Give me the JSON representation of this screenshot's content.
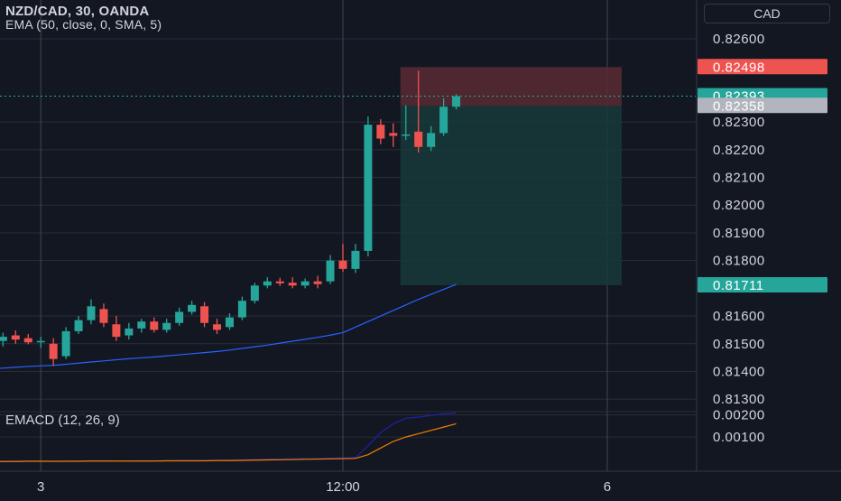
{
  "header": {
    "symbol_line": "NZD/CAD, 30, OANDA",
    "indicator_line": "EMA (50, close, 0, SMA, 5)",
    "currency": "CAD"
  },
  "colors": {
    "background": "#131722",
    "grid": "#2a2e39",
    "up": "#26a69a",
    "down": "#ef5350",
    "ema": "#2962ff",
    "macd": "#1e22aa",
    "signal": "#f57c00",
    "axis_text": "#d1d4dc",
    "stop_zone": "#5a2a33",
    "target_zone": "#173a3a"
  },
  "chart_data": [
    {
      "type": "candlestick",
      "title": "NZD/CAD, 30, OANDA",
      "x_ticks": [
        {
          "label": "3",
          "index": 3
        },
        {
          "label": "12:00",
          "index": 27
        },
        {
          "label": "6",
          "index": 48
        }
      ],
      "y_ticks": [
        "0.82600",
        "0.82300",
        "0.82200",
        "0.82100",
        "0.82000",
        "0.81900",
        "0.81800",
        "0.81600",
        "0.81500",
        "0.81400",
        "0.81300"
      ],
      "ylim": [
        0.81255,
        0.8274
      ],
      "candles": [
        {
          "o": 0.81505,
          "h": 0.81525,
          "l": 0.8148,
          "c": 0.815
        },
        {
          "o": 0.8151,
          "h": 0.8154,
          "l": 0.8149,
          "c": 0.81525
        },
        {
          "o": 0.8153,
          "h": 0.81548,
          "l": 0.815,
          "c": 0.81515
        },
        {
          "o": 0.8152,
          "h": 0.81535,
          "l": 0.81498,
          "c": 0.81505
        },
        {
          "o": 0.81505,
          "h": 0.81525,
          "l": 0.81485,
          "c": 0.8151
        },
        {
          "o": 0.815,
          "h": 0.8152,
          "l": 0.8142,
          "c": 0.81445
        },
        {
          "o": 0.81455,
          "h": 0.8156,
          "l": 0.81445,
          "c": 0.81545
        },
        {
          "o": 0.81545,
          "h": 0.816,
          "l": 0.81535,
          "c": 0.81585
        },
        {
          "o": 0.81585,
          "h": 0.8166,
          "l": 0.8157,
          "c": 0.81635
        },
        {
          "o": 0.81625,
          "h": 0.81645,
          "l": 0.8156,
          "c": 0.81575
        },
        {
          "o": 0.8157,
          "h": 0.816,
          "l": 0.8151,
          "c": 0.81525
        },
        {
          "o": 0.8153,
          "h": 0.81575,
          "l": 0.81515,
          "c": 0.81555
        },
        {
          "o": 0.81555,
          "h": 0.8159,
          "l": 0.8154,
          "c": 0.8158
        },
        {
          "o": 0.8158,
          "h": 0.81595,
          "l": 0.8154,
          "c": 0.8155
        },
        {
          "o": 0.8155,
          "h": 0.8159,
          "l": 0.8154,
          "c": 0.81575
        },
        {
          "o": 0.81575,
          "h": 0.8163,
          "l": 0.81565,
          "c": 0.81615
        },
        {
          "o": 0.81615,
          "h": 0.81655,
          "l": 0.81605,
          "c": 0.8164
        },
        {
          "o": 0.81635,
          "h": 0.8165,
          "l": 0.8156,
          "c": 0.81575
        },
        {
          "o": 0.8157,
          "h": 0.8159,
          "l": 0.81535,
          "c": 0.8155
        },
        {
          "o": 0.8156,
          "h": 0.8161,
          "l": 0.8155,
          "c": 0.81595
        },
        {
          "o": 0.81595,
          "h": 0.8167,
          "l": 0.81585,
          "c": 0.81655
        },
        {
          "o": 0.81655,
          "h": 0.8172,
          "l": 0.81645,
          "c": 0.8171
        },
        {
          "o": 0.8171,
          "h": 0.8174,
          "l": 0.817,
          "c": 0.81725
        },
        {
          "o": 0.81725,
          "h": 0.81738,
          "l": 0.81708,
          "c": 0.81718
        },
        {
          "o": 0.8172,
          "h": 0.8174,
          "l": 0.817,
          "c": 0.8171
        },
        {
          "o": 0.8171,
          "h": 0.81735,
          "l": 0.817,
          "c": 0.81725
        },
        {
          "o": 0.81725,
          "h": 0.81745,
          "l": 0.817,
          "c": 0.81715
        },
        {
          "o": 0.81725,
          "h": 0.8182,
          "l": 0.81715,
          "c": 0.818
        },
        {
          "o": 0.818,
          "h": 0.8186,
          "l": 0.8176,
          "c": 0.8177
        },
        {
          "o": 0.8177,
          "h": 0.8186,
          "l": 0.81755,
          "c": 0.81835
        },
        {
          "o": 0.81835,
          "h": 0.8232,
          "l": 0.81815,
          "c": 0.8229
        },
        {
          "o": 0.8229,
          "h": 0.8231,
          "l": 0.8222,
          "c": 0.8224
        },
        {
          "o": 0.8226,
          "h": 0.82295,
          "l": 0.8221,
          "c": 0.8225
        },
        {
          "o": 0.8225,
          "h": 0.8236,
          "l": 0.82235,
          "c": 0.82255
        },
        {
          "o": 0.82265,
          "h": 0.82485,
          "l": 0.8219,
          "c": 0.8221
        },
        {
          "o": 0.8221,
          "h": 0.82285,
          "l": 0.82195,
          "c": 0.8226
        },
        {
          "o": 0.8226,
          "h": 0.82385,
          "l": 0.8225,
          "c": 0.82355
        },
        {
          "o": 0.82355,
          "h": 0.824,
          "l": 0.82345,
          "c": 0.82393
        }
      ],
      "ema_values": [
        0.8141,
        0.81412,
        0.81415,
        0.81418,
        0.8142,
        0.81422,
        0.81426,
        0.8143,
        0.81434,
        0.81438,
        0.81442,
        0.81446,
        0.81449,
        0.81452,
        0.81456,
        0.8146,
        0.81464,
        0.81468,
        0.81472,
        0.81477,
        0.81483,
        0.81489,
        0.81495,
        0.81502,
        0.81509,
        0.81516,
        0.81523,
        0.81531,
        0.8154,
        0.8156,
        0.8158,
        0.816,
        0.8162,
        0.8164,
        0.8166,
        0.81678,
        0.81696,
        0.81714
      ],
      "position": {
        "entry": 0.82358,
        "stop": 0.82498,
        "target": 0.81711,
        "start_index": 32,
        "end_index": 49
      },
      "price_labels": [
        {
          "text": "0.82498",
          "value": 0.82498,
          "color": "#ef5350"
        },
        {
          "text": "0.82393",
          "value": 0.82393,
          "color": "#26a69a"
        },
        {
          "text": "0.82358",
          "value": 0.82358,
          "color": "#b2b5be"
        },
        {
          "text": "0.81711",
          "value": 0.81711,
          "color": "#26a69a"
        }
      ]
    },
    {
      "type": "line",
      "title": "EMACD (12, 26, 9)",
      "y_ticks": [
        "0.00200",
        "0.00100"
      ],
      "ylim": [
        -0.00055,
        0.00215
      ],
      "series": [
        {
          "values": [
            -0.0001,
            -0.0001,
            -9e-05,
            -9e-05,
            -0.0001,
            -0.00011,
            -0.0001,
            -9e-05,
            -8e-05,
            -8e-05,
            -9e-05,
            -9e-05,
            -8e-05,
            -8e-05,
            -8e-05,
            -7e-05,
            -6e-05,
            -6e-05,
            -6e-05,
            -5e-05,
            -4e-05,
            -2e-05,
            -1e-05,
            0.0,
            1e-05,
            2e-05,
            2e-05,
            4e-05,
            5e-05,
            7e-05,
            0.0006,
            0.0012,
            0.0016,
            0.00185,
            0.0019,
            0.00198,
            0.00205,
            0.0021
          ]
        },
        {
          "values": [
            -0.00011,
            -0.00011,
            -0.00011,
            -0.0001,
            -0.0001,
            -0.0001,
            -0.0001,
            -0.0001,
            -9e-05,
            -9e-05,
            -9e-05,
            -9e-05,
            -9e-05,
            -9e-05,
            -8e-05,
            -8e-05,
            -8e-05,
            -8e-05,
            -7e-05,
            -7e-05,
            -6e-05,
            -5e-05,
            -4e-05,
            -3e-05,
            -2e-05,
            -1e-05,
            0.0,
            1e-05,
            2e-05,
            3e-05,
            0.0002,
            0.0005,
            0.0008,
            0.001,
            0.00115,
            0.0013,
            0.00145,
            0.0016
          ]
        }
      ]
    }
  ]
}
